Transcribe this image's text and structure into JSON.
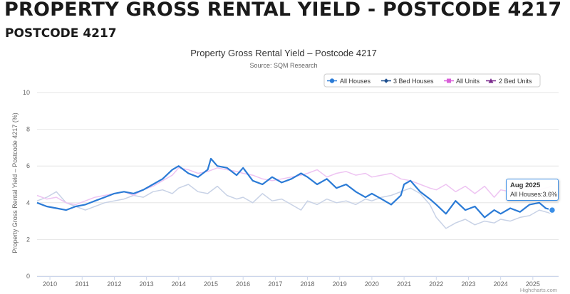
{
  "header": {
    "title": "PROPERTY GROSS RENTAL YIELD - POSTCODE 4217",
    "subtitle": "POSTCODE 4217"
  },
  "credits": "Highcharts.com",
  "tooltip": {
    "date": "Aug 2025",
    "series": "All Houses",
    "value": "3.6%"
  },
  "colors": {
    "all_houses": "#2b7bd6",
    "three_bed_houses": "#c8d2e6",
    "all_units": "#eec4f2",
    "two_bed_units": "#7a2a8c",
    "grid": "#e6e6e6",
    "axis_text": "#666666"
  },
  "chart_data": {
    "type": "line",
    "title": "Property Gross Rental Yield – Postcode 4217",
    "subtitle": "Source: SQM Research",
    "ylabel": "Property Gross Rental Yield – Postcode 4217 (%)",
    "xlabel": "",
    "ylim": [
      0,
      10
    ],
    "yticks": [
      0,
      2,
      4,
      6,
      8,
      10
    ],
    "xlim": [
      2009.6,
      2025.8
    ],
    "xticks": [
      "2010",
      "2011",
      "2012",
      "2013",
      "2014",
      "2015",
      "2016",
      "2017",
      "2018",
      "2019",
      "2020",
      "2021",
      "2022",
      "2023",
      "2024",
      "2025"
    ],
    "grid": true,
    "legend_position": "top-right",
    "series": [
      {
        "name": "All Houses",
        "key": "all_houses",
        "x": [
          2009.6,
          2009.9,
          2010.2,
          2010.5,
          2010.8,
          2011.1,
          2011.4,
          2011.7,
          2012.0,
          2012.3,
          2012.6,
          2012.9,
          2013.2,
          2013.5,
          2013.8,
          2014.0,
          2014.3,
          2014.6,
          2014.9,
          2015.0,
          2015.2,
          2015.5,
          2015.8,
          2016.0,
          2016.3,
          2016.6,
          2016.9,
          2017.2,
          2017.5,
          2017.8,
          2018.0,
          2018.3,
          2018.6,
          2018.9,
          2019.2,
          2019.5,
          2019.8,
          2020.0,
          2020.3,
          2020.6,
          2020.9,
          2021.0,
          2021.2,
          2021.5,
          2021.8,
          2022.0,
          2022.3,
          2022.6,
          2022.9,
          2023.2,
          2023.5,
          2023.8,
          2024.0,
          2024.3,
          2024.6,
          2024.9,
          2025.2,
          2025.4,
          2025.6
        ],
        "values": [
          4.0,
          3.8,
          3.7,
          3.6,
          3.8,
          3.9,
          4.1,
          4.3,
          4.5,
          4.6,
          4.5,
          4.7,
          5.0,
          5.3,
          5.8,
          6.0,
          5.6,
          5.4,
          5.8,
          6.4,
          6.0,
          5.9,
          5.5,
          5.9,
          5.2,
          5.0,
          5.4,
          5.1,
          5.3,
          5.6,
          5.4,
          5.0,
          5.3,
          4.8,
          5.0,
          4.6,
          4.3,
          4.5,
          4.2,
          3.9,
          4.4,
          5.0,
          5.2,
          4.6,
          4.2,
          3.9,
          3.4,
          4.1,
          3.6,
          3.8,
          3.2,
          3.6,
          3.4,
          3.7,
          3.5,
          3.9,
          4.0,
          3.7,
          3.6
        ]
      },
      {
        "name": "3 Bed Houses",
        "key": "three_bed_houses",
        "x": [
          2009.6,
          2009.9,
          2010.2,
          2010.5,
          2010.8,
          2011.1,
          2011.4,
          2011.7,
          2012.0,
          2012.3,
          2012.6,
          2012.9,
          2013.2,
          2013.5,
          2013.8,
          2014.0,
          2014.3,
          2014.6,
          2014.9,
          2015.2,
          2015.5,
          2015.8,
          2016.0,
          2016.3,
          2016.6,
          2016.9,
          2017.2,
          2017.5,
          2017.8,
          2018.0,
          2018.3,
          2018.6,
          2018.9,
          2019.2,
          2019.5,
          2019.8,
          2020.0,
          2020.3,
          2020.6,
          2020.9,
          2021.2,
          2021.5,
          2021.8,
          2022.0,
          2022.3,
          2022.6,
          2022.9,
          2023.2,
          2023.5,
          2023.8,
          2024.0,
          2024.3,
          2024.6,
          2024.9,
          2025.2,
          2025.4,
          2025.6
        ],
        "values": [
          4.1,
          4.3,
          4.6,
          4.0,
          3.8,
          3.6,
          3.8,
          4.0,
          4.1,
          4.2,
          4.4,
          4.3,
          4.6,
          4.7,
          4.5,
          4.8,
          5.0,
          4.6,
          4.5,
          4.9,
          4.4,
          4.2,
          4.3,
          4.0,
          4.5,
          4.1,
          4.2,
          3.9,
          3.6,
          4.1,
          3.9,
          4.2,
          4.0,
          4.1,
          3.9,
          4.2,
          4.1,
          4.3,
          4.4,
          4.6,
          4.8,
          4.5,
          3.9,
          3.2,
          2.6,
          2.9,
          3.1,
          2.8,
          3.0,
          2.9,
          3.1,
          3.0,
          3.2,
          3.3,
          3.6,
          3.5,
          3.4
        ]
      },
      {
        "name": "All Units",
        "key": "all_units",
        "x": [
          2009.6,
          2009.9,
          2010.2,
          2010.5,
          2010.8,
          2011.1,
          2011.4,
          2011.7,
          2012.0,
          2012.3,
          2012.6,
          2012.9,
          2013.2,
          2013.5,
          2013.8,
          2014.0,
          2014.3,
          2014.6,
          2014.9,
          2015.2,
          2015.5,
          2015.8,
          2016.0,
          2016.3,
          2016.6,
          2016.9,
          2017.2,
          2017.5,
          2017.8,
          2018.0,
          2018.3,
          2018.6,
          2018.9,
          2019.2,
          2019.5,
          2019.8,
          2020.0,
          2020.3,
          2020.6,
          2020.9,
          2021.2,
          2021.5,
          2021.8,
          2022.0,
          2022.3,
          2022.6,
          2022.9,
          2023.2,
          2023.5,
          2023.8,
          2024.0,
          2024.3,
          2024.6,
          2024.9,
          2025.2,
          2025.4,
          2025.6
        ],
        "values": [
          4.4,
          4.2,
          4.3,
          4.0,
          3.9,
          4.1,
          4.3,
          4.4,
          4.5,
          4.6,
          4.4,
          4.7,
          4.9,
          5.2,
          5.5,
          5.9,
          5.8,
          5.6,
          5.7,
          5.9,
          5.8,
          5.7,
          5.6,
          5.5,
          5.3,
          5.2,
          5.3,
          5.4,
          5.5,
          5.6,
          5.8,
          5.4,
          5.6,
          5.7,
          5.5,
          5.6,
          5.4,
          5.5,
          5.6,
          5.3,
          5.2,
          5.0,
          4.8,
          4.7,
          5.0,
          4.6,
          4.9,
          4.5,
          4.9,
          4.3,
          4.7,
          4.6,
          4.8,
          4.9,
          4.7,
          4.8,
          4.9
        ]
      },
      {
        "name": "2 Bed Units",
        "key": "two_bed_units",
        "x": [],
        "values": []
      }
    ]
  }
}
